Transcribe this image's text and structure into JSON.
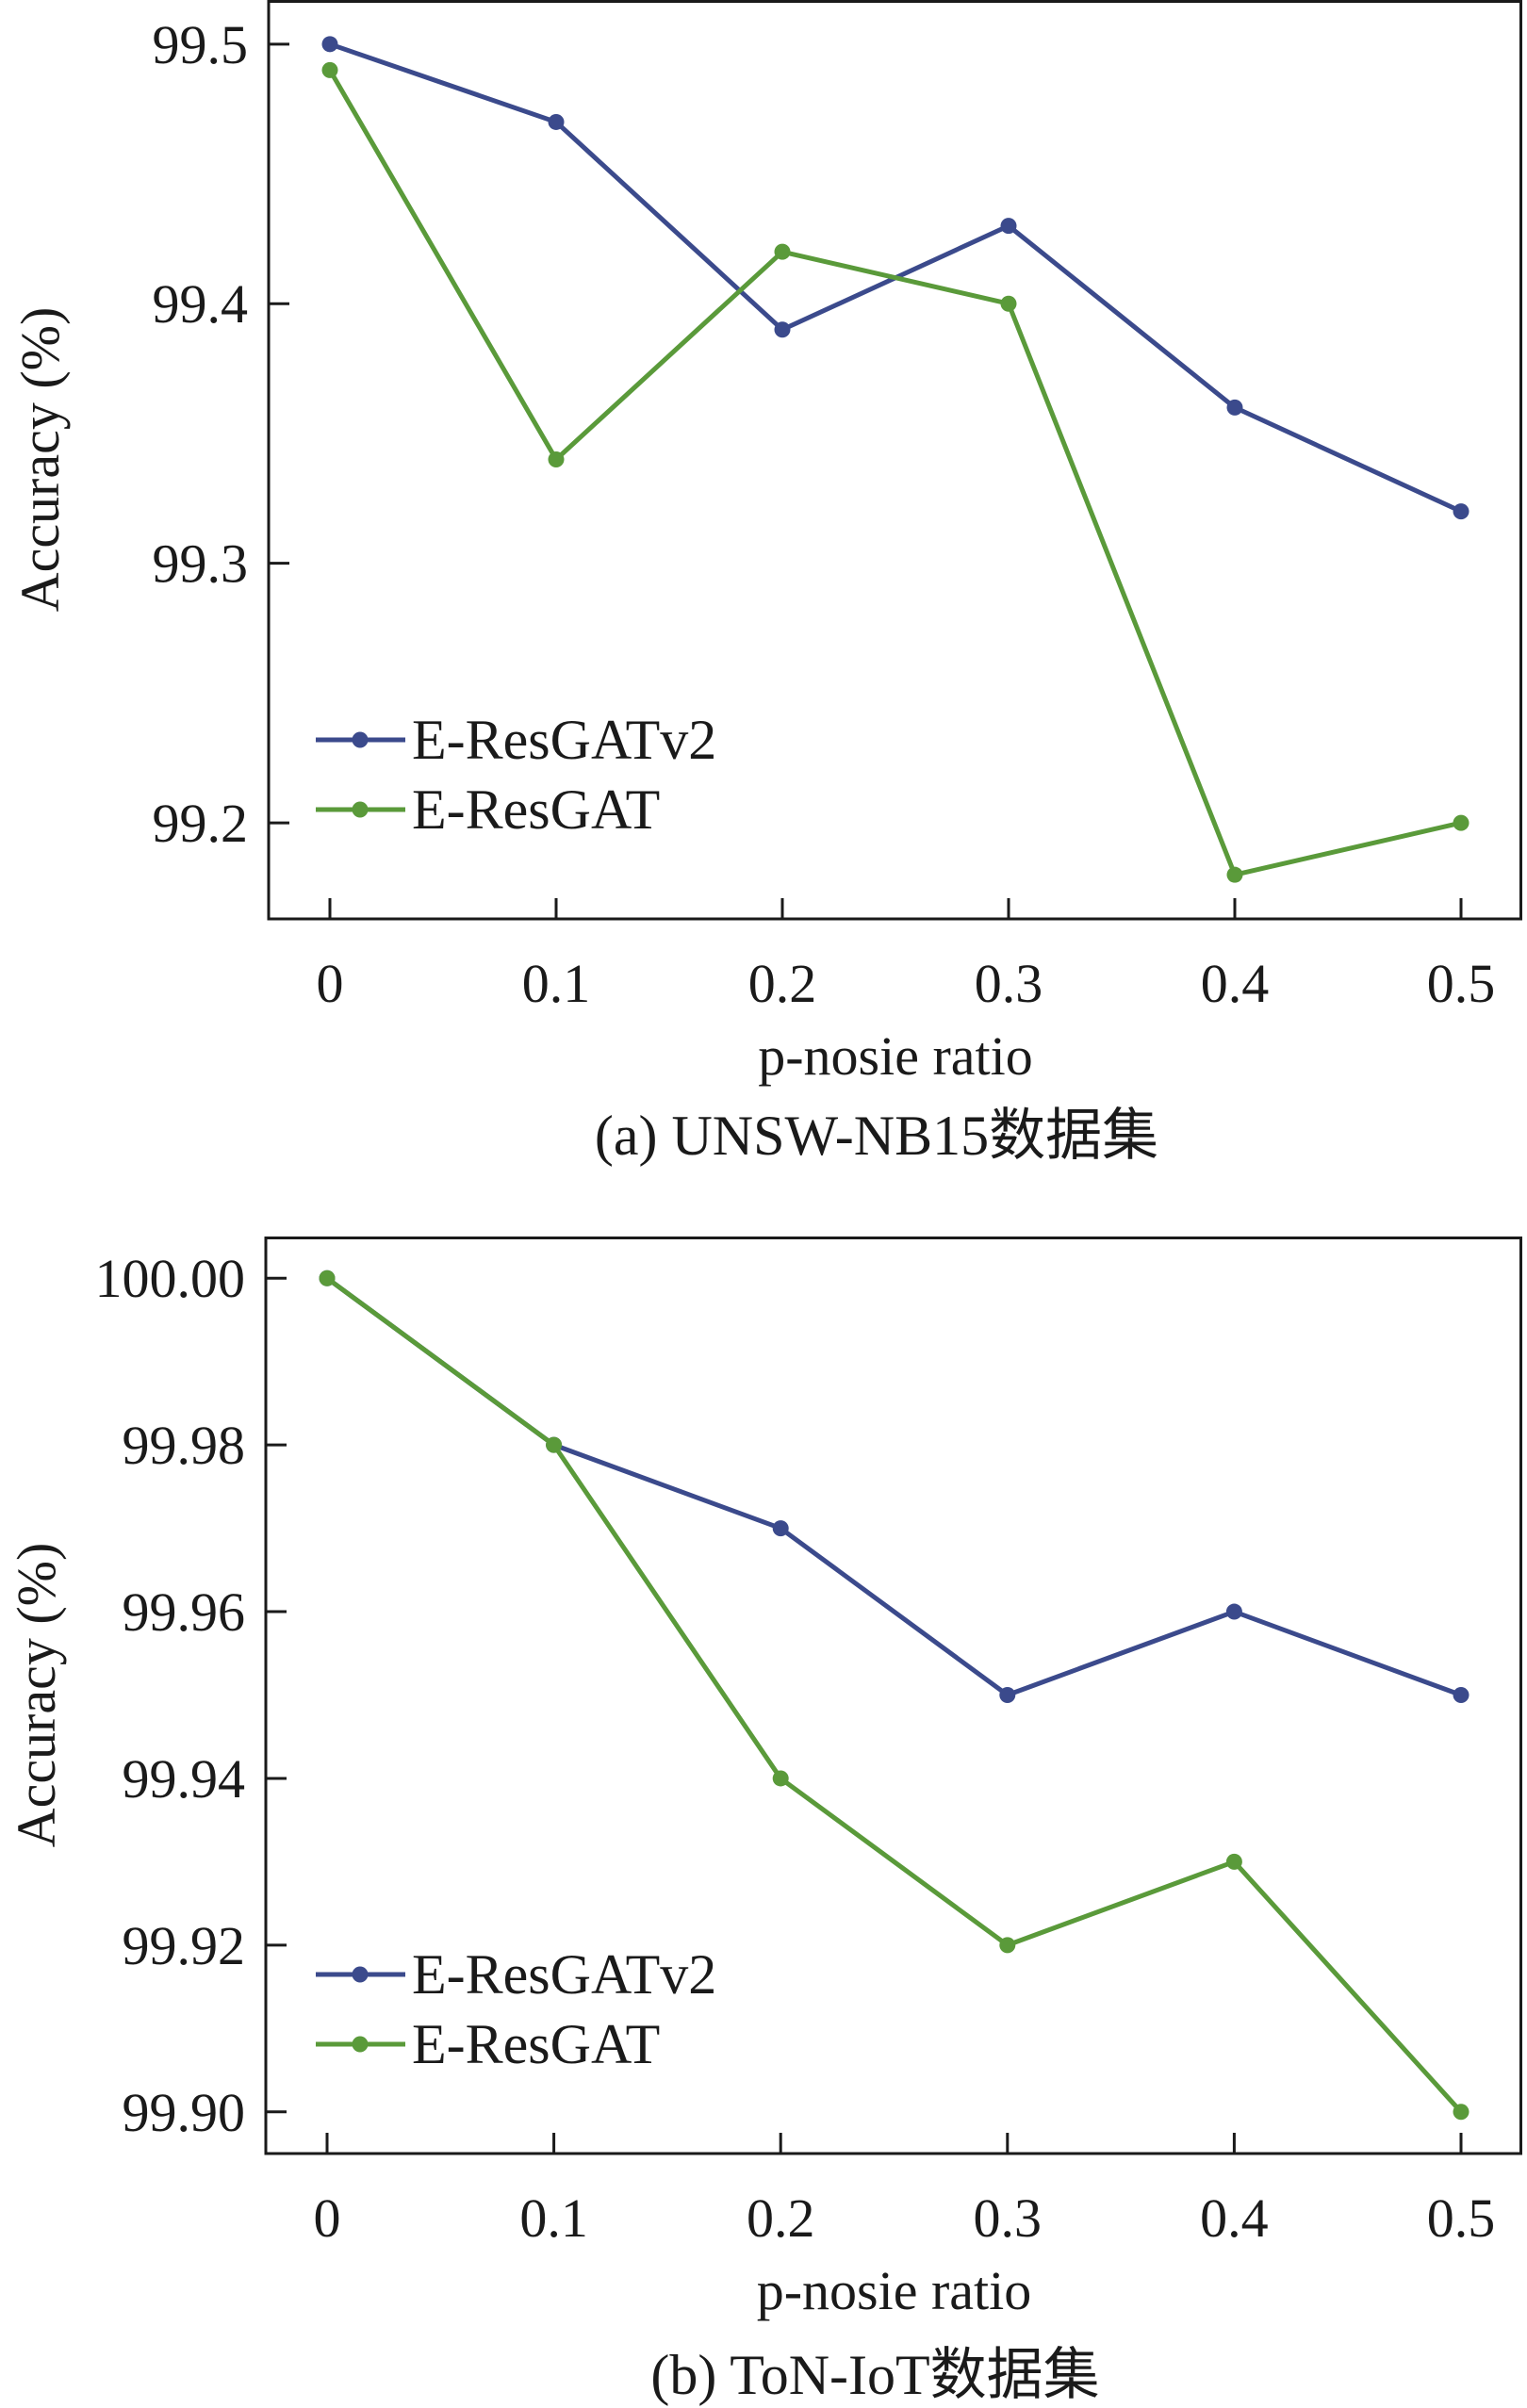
{
  "chart_data": [
    {
      "type": "line",
      "caption": "(a) UNSW-NB15数据集",
      "xlabel": "p-nosie ratio",
      "ylabel": "Accuracy (%)",
      "x": [
        0,
        0.1,
        0.2,
        0.3,
        0.4,
        0.5
      ],
      "xtick_labels": [
        "0",
        "0.1",
        "0.2",
        "0.3",
        "0.4",
        "0.5"
      ],
      "ylim": [
        99.163,
        99.517
      ],
      "yticks": [
        99.2,
        99.3,
        99.4,
        99.5
      ],
      "ytick_labels": [
        "99.2",
        "99.3",
        "99.4",
        "99.5"
      ],
      "grid": false,
      "legend_position": "lower-left",
      "series": [
        {
          "name": "E-ResGATv2",
          "color": "#3b4a8c",
          "values": [
            99.5,
            99.47,
            99.39,
            99.43,
            99.36,
            99.32
          ]
        },
        {
          "name": "E-ResGAT",
          "color": "#5a9a3a",
          "values": [
            99.49,
            99.34,
            99.42,
            99.4,
            99.18,
            99.2
          ]
        }
      ]
    },
    {
      "type": "line",
      "caption": "(b) ToN-IoT数据集",
      "xlabel": "p-nosie ratio",
      "ylabel": "Accuracy (%)",
      "x": [
        0,
        0.1,
        0.2,
        0.3,
        0.4,
        0.5
      ],
      "xtick_labels": [
        "0",
        "0.1",
        "0.2",
        "0.3",
        "0.4",
        "0.5"
      ],
      "ylim": [
        99.895,
        100.005
      ],
      "yticks": [
        99.9,
        99.92,
        99.94,
        99.96,
        99.98,
        100.0
      ],
      "ytick_labels": [
        "99.90",
        "99.92",
        "99.94",
        "99.96",
        "99.98",
        "100.00"
      ],
      "grid": false,
      "legend_position": "lower-left",
      "series": [
        {
          "name": "E-ResGATv2",
          "color": "#3b4a8c",
          "values": [
            100.0,
            99.98,
            99.97,
            99.95,
            99.96,
            99.95
          ]
        },
        {
          "name": "E-ResGAT",
          "color": "#5a9a3a",
          "values": [
            100.0,
            99.98,
            99.94,
            99.92,
            99.93,
            99.9
          ]
        }
      ]
    }
  ]
}
